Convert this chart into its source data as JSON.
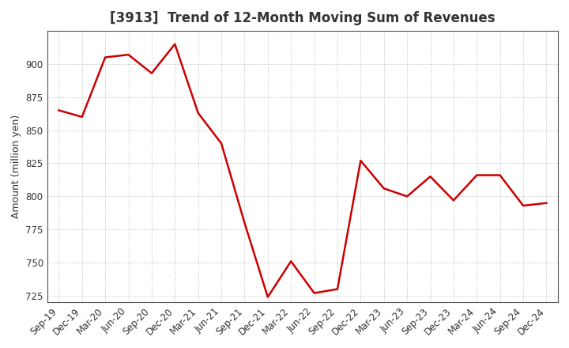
{
  "title": "[3913]  Trend of 12-Month Moving Sum of Revenues",
  "ylabel": "Amount (million yen)",
  "line_color": "#cc0000",
  "line_width": 1.8,
  "background_color": "#ffffff",
  "plot_bg_color": "#ffffff",
  "grid_color": "#aaaaaa",
  "labels": [
    "Sep-19",
    "Dec-19",
    "Mar-20",
    "Jun-20",
    "Sep-20",
    "Dec-20",
    "Mar-21",
    "Jun-21",
    "Sep-21",
    "Dec-21",
    "Mar-22",
    "Jun-22",
    "Sep-22",
    "Dec-22",
    "Mar-23",
    "Jun-23",
    "Sep-23",
    "Dec-23",
    "Mar-24",
    "Jun-24",
    "Sep-24",
    "Dec-24"
  ],
  "values": [
    865,
    860,
    905,
    907,
    893,
    915,
    863,
    840,
    780,
    724,
    751,
    727,
    730,
    827,
    806,
    800,
    815,
    797,
    816,
    816,
    793,
    795
  ],
  "ylim": [
    720,
    925
  ],
  "yticks": [
    725,
    750,
    775,
    800,
    825,
    850,
    875,
    900
  ],
  "title_fontsize": 12,
  "tick_fontsize": 8.5,
  "ylabel_fontsize": 9
}
